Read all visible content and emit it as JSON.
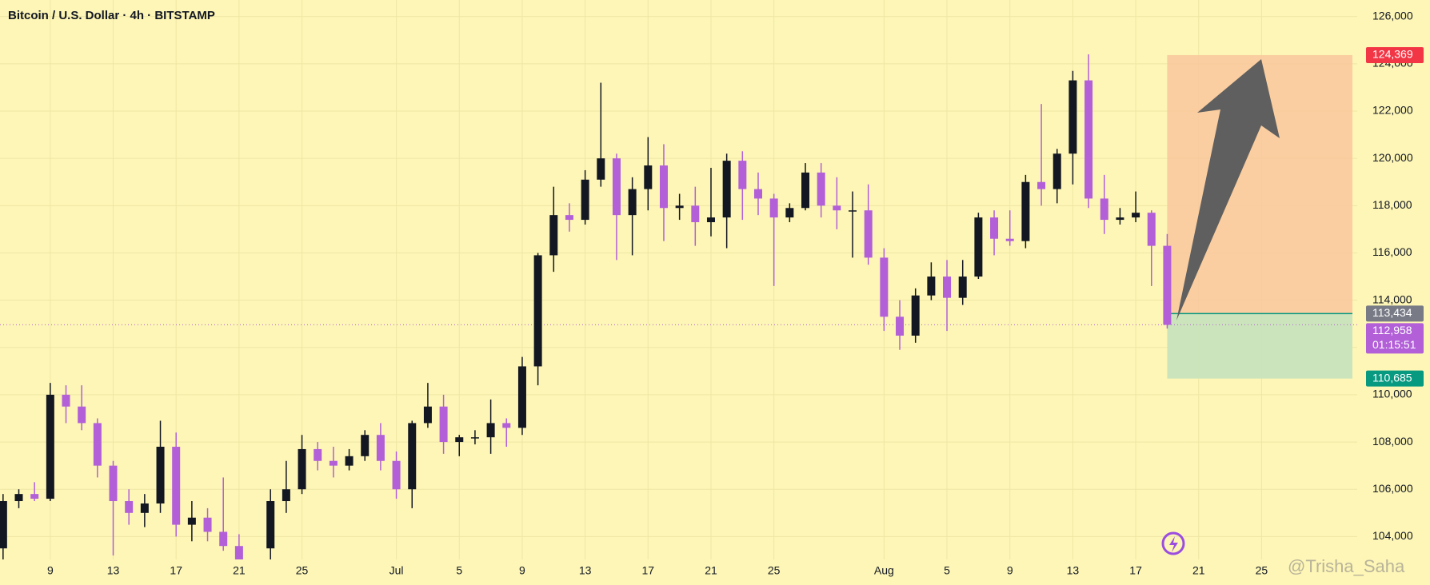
{
  "chart_data": {
    "type": "candlestick",
    "title": "Bitcoin / U.S. Dollar · 4h · BITSTAMP",
    "categories": [
      null,
      null,
      null,
      "9",
      null,
      null,
      null,
      "13",
      null,
      null,
      null,
      "17",
      null,
      null,
      null,
      "21",
      null,
      null,
      null,
      "25",
      null,
      null,
      null,
      null,
      null,
      "Jul",
      null,
      null,
      null,
      "5",
      null,
      null,
      null,
      "9",
      null,
      null,
      null,
      "13",
      null,
      null,
      null,
      "17",
      null,
      null,
      null,
      "21",
      null,
      null,
      null,
      "25",
      null,
      null,
      null,
      null,
      null,
      null,
      "Aug",
      null,
      null,
      null,
      "5",
      null,
      null,
      null,
      "9",
      null,
      null,
      null,
      "13",
      null,
      null,
      null,
      "17",
      null,
      null,
      null,
      "21",
      null,
      null,
      null,
      "25",
      null,
      null,
      null
    ],
    "open": [
      103500,
      105500,
      105800,
      105600,
      110000,
      109500,
      108800,
      107000,
      105500,
      105000,
      105400,
      107800,
      104500,
      104800,
      104200,
      103600,
      null,
      103500,
      105500,
      106000,
      107700,
      107200,
      107000,
      107400,
      108300,
      107200,
      106000,
      108800,
      109500,
      108000,
      108200,
      108200,
      108800,
      108600,
      111200,
      115900,
      117600,
      117400,
      119100,
      120000,
      117600,
      118700,
      119700,
      117900,
      118000,
      117300,
      117500,
      119900,
      118700,
      118300,
      117500,
      117900,
      119400,
      118000,
      117800,
      117800,
      115800,
      113300,
      112500,
      114200,
      115000,
      114100,
      115000,
      117500,
      116600,
      116500,
      119000,
      118700,
      120200,
      123300,
      118300,
      117400,
      117500,
      117700,
      116300,
      null,
      null,
      null,
      null,
      null,
      null,
      null,
      null,
      null
    ],
    "high": [
      105800,
      106000,
      106300,
      110500,
      110400,
      110400,
      109000,
      107200,
      106000,
      105800,
      108900,
      108400,
      105500,
      105200,
      106500,
      104100,
      null,
      106000,
      107200,
      108300,
      108000,
      107800,
      107700,
      108500,
      108800,
      107600,
      108900,
      110500,
      110000,
      108300,
      108500,
      109800,
      109000,
      111600,
      116000,
      118800,
      118100,
      119500,
      123200,
      120200,
      119200,
      120900,
      120600,
      118500,
      118800,
      119600,
      120200,
      120300,
      119400,
      118500,
      118100,
      119800,
      119800,
      119200,
      118600,
      118900,
      116200,
      114000,
      114500,
      115600,
      115700,
      115700,
      117700,
      117800,
      117800,
      119300,
      122300,
      120400,
      123700,
      124400,
      119300,
      117900,
      118600,
      117800,
      116800,
      null,
      null,
      null,
      null,
      null,
      null,
      null,
      null,
      null
    ],
    "low": [
      103000,
      105200,
      105500,
      105500,
      108800,
      108500,
      106500,
      103200,
      104500,
      104400,
      105000,
      104000,
      103800,
      103800,
      103400,
      102700,
      null,
      103000,
      105000,
      105800,
      106800,
      106500,
      106800,
      107200,
      106800,
      105600,
      105200,
      108600,
      107500,
      107400,
      107900,
      107500,
      107800,
      108300,
      110400,
      115200,
      116900,
      117200,
      118800,
      115700,
      115900,
      117800,
      116500,
      117400,
      116300,
      116700,
      116200,
      117400,
      117600,
      114600,
      117300,
      117800,
      117500,
      117000,
      115800,
      115500,
      112700,
      111900,
      112200,
      114000,
      112700,
      113800,
      114900,
      115900,
      116300,
      116200,
      118000,
      118100,
      118900,
      117900,
      116800,
      117200,
      117300,
      114600,
      112800,
      null,
      null,
      null,
      null,
      null,
      null,
      null,
      null,
      null
    ],
    "close": [
      105500,
      105800,
      105600,
      110000,
      109500,
      108800,
      107000,
      105500,
      105000,
      105400,
      107800,
      104500,
      104800,
      104200,
      103600,
      103000,
      null,
      105500,
      106000,
      107700,
      107200,
      107000,
      107400,
      108300,
      107200,
      106000,
      108800,
      109500,
      108000,
      108200,
      108200,
      108800,
      108600,
      111200,
      115900,
      117600,
      117400,
      119100,
      120000,
      117600,
      118700,
      119700,
      117900,
      118000,
      117300,
      117500,
      119900,
      118700,
      118300,
      117500,
      117900,
      119400,
      118000,
      117800,
      117800,
      115800,
      113300,
      112500,
      114200,
      115000,
      114100,
      115000,
      117500,
      116600,
      116500,
      119000,
      118700,
      120200,
      123300,
      118300,
      117400,
      117500,
      117700,
      116300,
      112958,
      null,
      null,
      null,
      null,
      null,
      null,
      null,
      null,
      null
    ],
    "up_color": "#131722",
    "down_color": "#b25fd8",
    "ylim": [
      103100,
      126700
    ],
    "yticks": [
      {
        "value": 104000,
        "label": "104,000"
      },
      {
        "value": 106000,
        "label": "106,000"
      },
      {
        "value": 108000,
        "label": "108,000"
      },
      {
        "value": 110000,
        "label": "110,000"
      },
      {
        "value": 112000,
        "label": "112,000"
      },
      {
        "value": 114000,
        "label": "114,000"
      },
      {
        "value": 116000,
        "label": "116,000"
      },
      {
        "value": 118000,
        "label": "118,000"
      },
      {
        "value": 120000,
        "label": "120,000"
      },
      {
        "value": 122000,
        "label": "122,000"
      },
      {
        "value": 124000,
        "label": "124,000"
      },
      {
        "value": 126000,
        "label": "126,000"
      }
    ],
    "grid": true,
    "levels": [
      {
        "value": 124369,
        "label": "124,369",
        "color": "#f23645"
      },
      {
        "value": 113434,
        "label": "113,434",
        "color": "#787b86"
      },
      {
        "value": 112958,
        "label": "112,958",
        "countdown": "01:15:51",
        "color": "#b25fd8"
      },
      {
        "value": 110685,
        "label": "110,685",
        "color": "#089981"
      }
    ],
    "watermark": "@Trisha_Saha"
  }
}
